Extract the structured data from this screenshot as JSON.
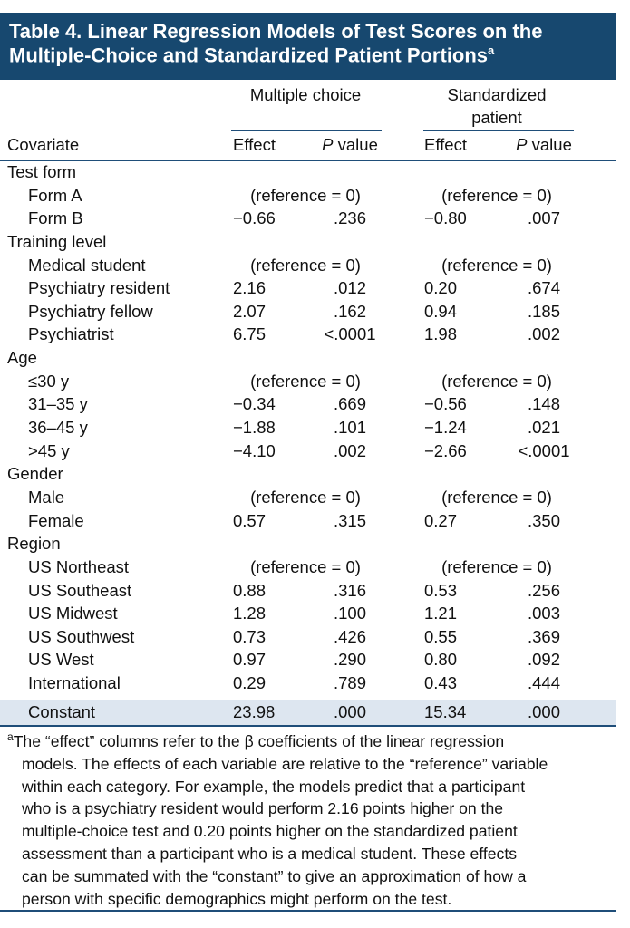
{
  "header": {
    "title_lines": [
      "Table 4. Linear Regression Models of Test Scores on the",
      "Multiple-Choice and Standardized Patient Portions"
    ],
    "title_note": "a"
  },
  "column_groups": [
    "Multiple choice",
    "Standardized patient"
  ],
  "columns": [
    {
      "label": "Covariate"
    },
    {
      "label": "Effect"
    },
    {
      "symbol": "P",
      "label": "value"
    },
    {
      "label": "Effect"
    },
    {
      "symbol": "P",
      "label": "value"
    }
  ],
  "rows": [
    {
      "label": "Test form",
      "group": true
    },
    {
      "label": "Form A",
      "cells": [
        "(reference = 0)",
        "(reference = 0)"
      ]
    },
    {
      "label": "Form B",
      "cells": [
        "−0.66",
        ".236",
        "−0.80",
        ".007"
      ]
    },
    {
      "label": "Training level",
      "group": true
    },
    {
      "label": "Medical student",
      "cells": [
        "(reference = 0)",
        "(reference = 0)"
      ]
    },
    {
      "label": "Psychiatry resident",
      "cells": [
        "2.16",
        ".012",
        "0.20",
        ".674"
      ]
    },
    {
      "label": "Psychiatry fellow",
      "cells": [
        "2.07",
        ".162",
        "0.94",
        ".185"
      ]
    },
    {
      "label": "Psychiatrist",
      "cells": [
        "6.75",
        "<.0001",
        "1.98",
        ".002"
      ]
    },
    {
      "label": "Age",
      "group": true
    },
    {
      "label": "≤30 y",
      "cells": [
        "(reference = 0)",
        "(reference = 0)"
      ]
    },
    {
      "label": "31–35 y",
      "cells": [
        "−0.34",
        ".669",
        "−0.56",
        ".148"
      ]
    },
    {
      "label": "36–45 y",
      "cells": [
        "−1.88",
        ".101",
        "−1.24",
        ".021"
      ]
    },
    {
      "label": ">45 y",
      "cells": [
        "−4.10",
        ".002",
        "−2.66",
        "<.0001"
      ]
    },
    {
      "label": "Gender",
      "group": true
    },
    {
      "label": "Male",
      "cells": [
        "(reference = 0)",
        "(reference = 0)"
      ]
    },
    {
      "label": "Female",
      "cells": [
        "0.57",
        ".315",
        "0.27",
        ".350"
      ]
    },
    {
      "label": "Region",
      "group": true
    },
    {
      "label": "US Northeast",
      "cells": [
        "(reference = 0)",
        "(reference = 0)"
      ]
    },
    {
      "label": "US Southeast",
      "cells": [
        "0.88",
        ".316",
        "0.53",
        ".256"
      ]
    },
    {
      "label": "US Midwest",
      "cells": [
        "1.28",
        ".100",
        "1.21",
        ".003"
      ]
    },
    {
      "label": "US Southwest",
      "cells": [
        "0.73",
        ".426",
        "0.55",
        ".369"
      ]
    },
    {
      "label": "US West",
      "cells": [
        "0.97",
        ".290",
        "0.80",
        ".092"
      ]
    },
    {
      "label": "International",
      "cells": [
        "0.29",
        ".789",
        "0.43",
        ".444"
      ]
    }
  ],
  "constant": {
    "label": "Constant",
    "cells": [
      "23.98",
      ".000",
      "15.34",
      ".000"
    ]
  },
  "footnote": {
    "marker": "a",
    "lines": [
      "The “effect” columns refer to the β coefficients of the linear regression",
      "models. The effects of each variable are relative to the “reference” variable",
      "within each category. For example, the models predict that a participant",
      "who is a psychiatry resident would perform 2.16 points higher on the",
      "multiple-choice test and 0.20 points higher on the standardized patient",
      "assessment than a participant who is a medical student. These effects",
      "can be summated with the “constant” to give an approximation of how a",
      "person with specific demographics might perform on the test."
    ]
  }
}
